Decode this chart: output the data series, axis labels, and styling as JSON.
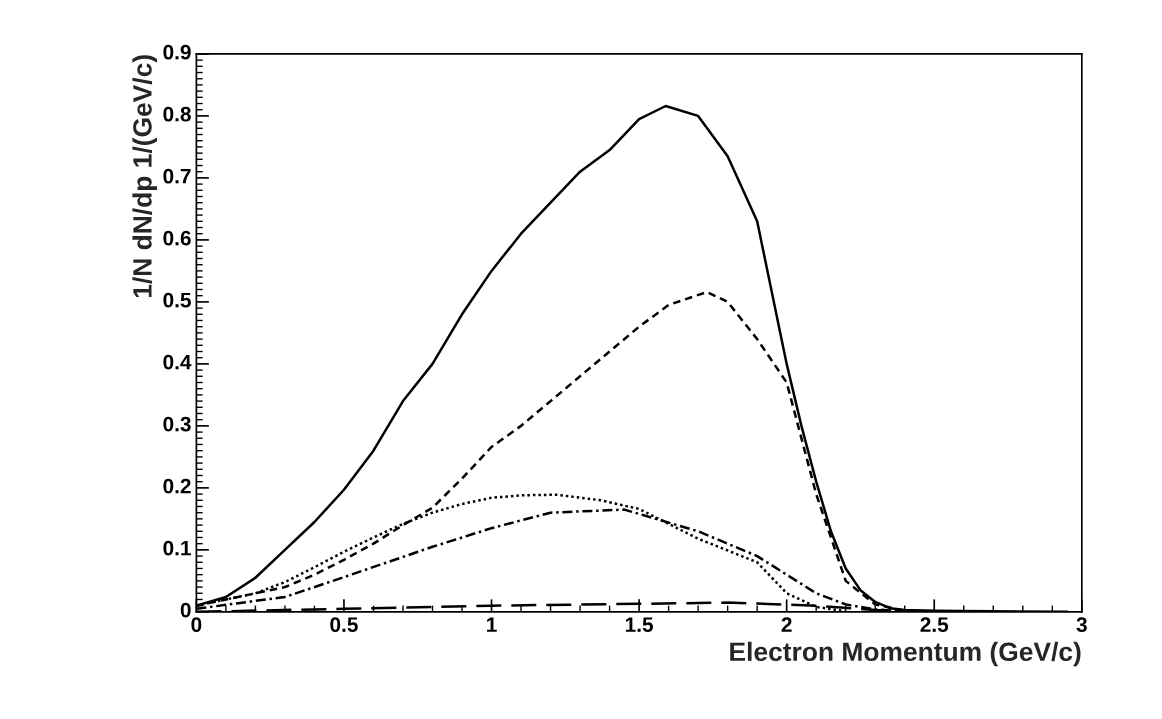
{
  "chart_data": {
    "type": "line",
    "xlabel": "Electron Momentum (GeV/c)",
    "ylabel": "1/N dN/dp 1/(GeV/c)",
    "xlim": [
      0,
      3
    ],
    "ylim": [
      0,
      0.9
    ],
    "xticks": [
      0,
      0.5,
      1,
      1.5,
      2,
      2.5,
      3
    ],
    "yticks": [
      0,
      0.1,
      0.2,
      0.3,
      0.4,
      0.5,
      0.6,
      0.7,
      0.8,
      0.9
    ],
    "grid": false,
    "marker": "none",
    "series": [
      {
        "color": "#000000",
        "line_style": "solid",
        "x": [
          0,
          0.1,
          0.2,
          0.3,
          0.4,
          0.5,
          0.6,
          0.7,
          0.8,
          0.9,
          1.0,
          1.1,
          1.2,
          1.3,
          1.4,
          1.5,
          1.59,
          1.7,
          1.8,
          1.9,
          2.0,
          2.05,
          2.1,
          2.15,
          2.2,
          2.25,
          2.3,
          2.35,
          2.4,
          2.5,
          2.7,
          2.95
        ],
        "values": [
          0.01,
          0.024,
          0.055,
          0.1,
          0.145,
          0.197,
          0.26,
          0.34,
          0.4,
          0.48,
          0.55,
          0.61,
          0.66,
          0.71,
          0.745,
          0.795,
          0.816,
          0.8,
          0.735,
          0.63,
          0.4,
          0.3,
          0.21,
          0.13,
          0.07,
          0.035,
          0.016,
          0.006,
          0.003,
          0.002,
          0.001,
          0
        ]
      },
      {
        "color": "#000000",
        "line_style": "dashed",
        "x": [
          0,
          0.2,
          0.3,
          0.4,
          0.5,
          0.6,
          0.7,
          0.8,
          0.9,
          1.0,
          1.1,
          1.2,
          1.3,
          1.4,
          1.5,
          1.6,
          1.73,
          1.8,
          1.9,
          2.0,
          2.1,
          2.2,
          2.3,
          2.4
        ],
        "values": [
          0.01,
          0.03,
          0.04,
          0.06,
          0.084,
          0.11,
          0.14,
          0.168,
          0.215,
          0.266,
          0.3,
          0.34,
          0.38,
          0.42,
          0.46,
          0.495,
          0.516,
          0.5,
          0.44,
          0.37,
          0.19,
          0.05,
          0.012,
          0.002
        ]
      },
      {
        "color": "#000000",
        "line_style": "dotted",
        "x": [
          0,
          0.2,
          0.3,
          0.4,
          0.5,
          0.6,
          0.7,
          0.8,
          0.9,
          1.0,
          1.1,
          1.22,
          1.37,
          1.5,
          1.7,
          1.9,
          2.0,
          2.1,
          2.2
        ],
        "values": [
          0.01,
          0.03,
          0.048,
          0.072,
          0.097,
          0.12,
          0.142,
          0.16,
          0.174,
          0.184,
          0.188,
          0.189,
          0.18,
          0.166,
          0.118,
          0.08,
          0.03,
          0.008,
          0.001
        ]
      },
      {
        "color": "#000000",
        "line_style": "dashdot",
        "x": [
          0,
          0.3,
          0.5,
          0.8,
          1.0,
          1.2,
          1.45,
          1.7,
          1.9,
          2.0,
          2.1,
          2.2,
          2.3,
          2.4
        ],
        "values": [
          0.005,
          0.024,
          0.056,
          0.105,
          0.135,
          0.16,
          0.165,
          0.13,
          0.09,
          0.06,
          0.03,
          0.012,
          0.004,
          0.001
        ]
      },
      {
        "color": "#000000",
        "line_style": "longdash",
        "x": [
          0,
          0.5,
          1.0,
          1.5,
          1.8,
          2.1,
          2.3,
          2.4
        ],
        "values": [
          0,
          0.005,
          0.01,
          0.013,
          0.015,
          0.01,
          0.003,
          0.001
        ]
      }
    ]
  }
}
